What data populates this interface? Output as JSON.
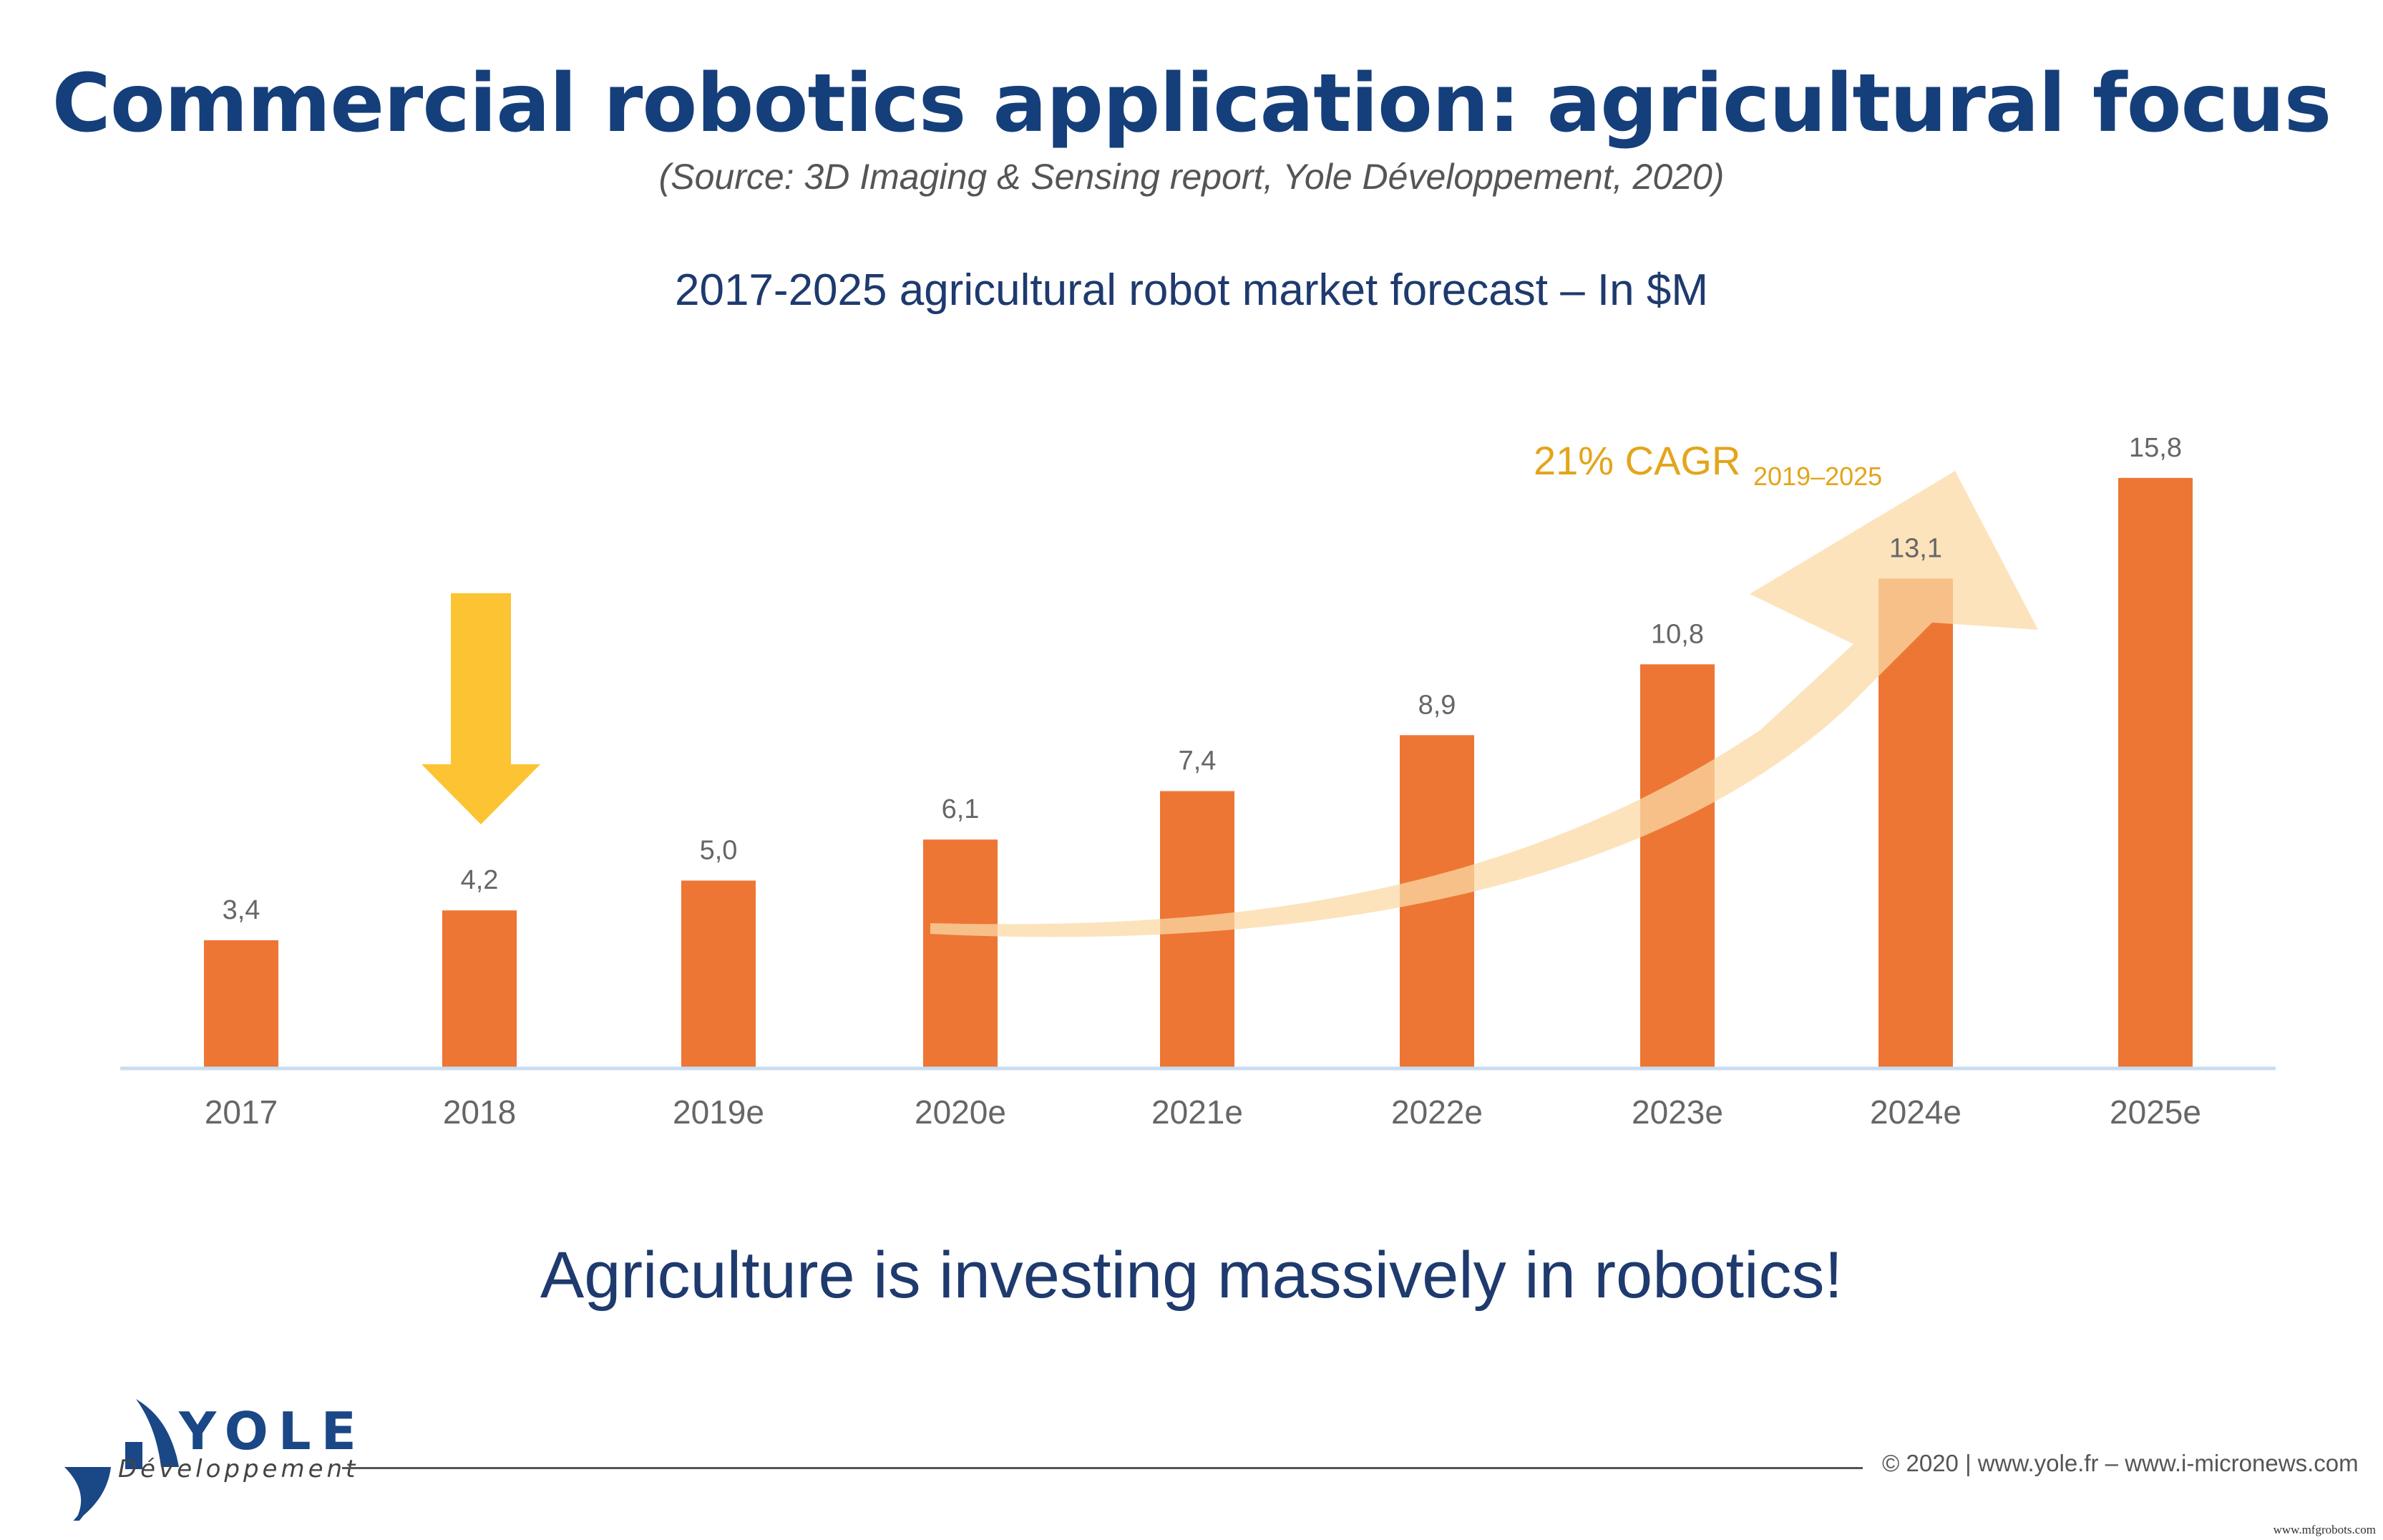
{
  "header": {
    "title": "Commercial robotics application: agricultural focus",
    "source": "(Source: 3D Imaging & Sensing report, Yole Développement, 2020)"
  },
  "chart_data": {
    "type": "bar",
    "title": "2017-2025 agricultural robot market forecast – In $M",
    "xlabel": "",
    "ylabel": "",
    "unit": "$M",
    "categories": [
      "2017",
      "2018",
      "2019e",
      "2020e",
      "2021e",
      "2022e",
      "2023e",
      "2024e",
      "2025e"
    ],
    "values": [
      3.4,
      4.2,
      5.0,
      6.1,
      7.4,
      8.9,
      10.8,
      13.1,
      15.8
    ],
    "value_labels": [
      "3,4",
      "4,2",
      "5,0",
      "6,1",
      "7,4",
      "8,9",
      "10,8",
      "13,1",
      "15,8"
    ],
    "ylim": [
      0,
      16
    ],
    "grid": false,
    "legend": null,
    "bar_color": "#ed7635",
    "annotations": [
      {
        "text": "21% CAGR",
        "subscript": "2019–2025",
        "color": "#e3a51b",
        "type": "curved-arrow",
        "from": "2020e",
        "to": "2024e"
      },
      {
        "type": "down-arrow",
        "target": "2018",
        "color": "#fcc433"
      }
    ]
  },
  "cagr": {
    "main": "21% CAGR",
    "sub": "2019–2025"
  },
  "tagline": "Agriculture is investing massively in robotics!",
  "footer": {
    "logo_word": "YOLE",
    "logo_sub": "Développement",
    "copyright": "© 2020 | www.yole.fr – www.i-micronews.com",
    "watermark": "www.mfgrobots.com"
  },
  "colors": {
    "title": "#153f7b",
    "bar": "#ed7635",
    "cagr": "#e3a51b",
    "highlight_arrow": "#fcc433",
    "growth_arrow": "#fbd9a6",
    "baseline": "#c9ddf1"
  }
}
